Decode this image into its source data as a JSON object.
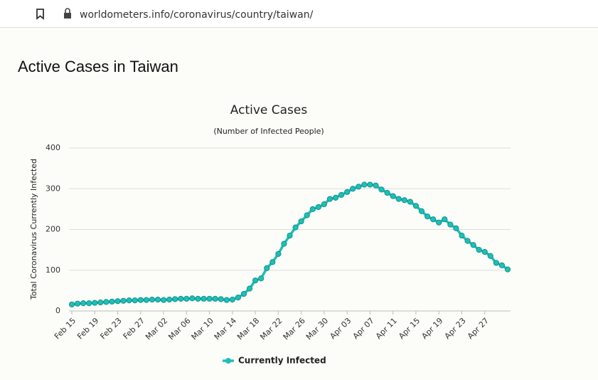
{
  "browser": {
    "url": "worldometers.info/coronavirus/country/taiwan/"
  },
  "heading": "Active Cases in Taiwan",
  "chart_data": {
    "type": "line",
    "title": "Active Cases",
    "subtitle": "(Number of Infected People)",
    "y_label": "Total Coronavirus Currently Infected",
    "categories": [
      "Feb 15",
      null,
      null,
      null,
      "Feb 19",
      null,
      null,
      null,
      "Feb 23",
      null,
      null,
      null,
      "Feb 27",
      null,
      null,
      null,
      "Mar 02",
      null,
      null,
      null,
      "Mar 06",
      null,
      null,
      null,
      "Mar 10",
      null,
      null,
      null,
      "Mar 14",
      null,
      null,
      null,
      "Mar 18",
      null,
      null,
      null,
      "Mar 22",
      null,
      null,
      null,
      "Mar 26",
      null,
      null,
      null,
      "Mar 30",
      null,
      null,
      null,
      "Apr 03",
      null,
      null,
      null,
      "Apr 07",
      null,
      null,
      null,
      "Apr 11",
      null,
      null,
      null,
      "Apr 15",
      null,
      null,
      null,
      "Apr 19",
      null,
      null,
      null,
      "Apr 23",
      null,
      null,
      null,
      "Apr 27",
      null,
      null,
      null,
      null
    ],
    "series": [
      {
        "name": "Currently Infected",
        "color": "#1fbfb8",
        "values": [
          16,
          18,
          19,
          19,
          20,
          21,
          22,
          23,
          24,
          25,
          26,
          26,
          27,
          27,
          28,
          28,
          27,
          28,
          29,
          30,
          30,
          31,
          30,
          30,
          30,
          30,
          29,
          27,
          28,
          33,
          42,
          55,
          75,
          80,
          105,
          120,
          140,
          165,
          185,
          205,
          220,
          235,
          250,
          255,
          262,
          275,
          278,
          285,
          292,
          300,
          305,
          310,
          310,
          308,
          298,
          290,
          282,
          275,
          272,
          268,
          258,
          245,
          232,
          225,
          217,
          225,
          212,
          203,
          185,
          172,
          162,
          150,
          145,
          135,
          118,
          112,
          102
        ]
      }
    ],
    "ylim": [
      0,
      400
    ],
    "yticks": [
      0,
      100,
      200,
      300,
      400
    ],
    "grid": true,
    "legend": "bottom"
  }
}
